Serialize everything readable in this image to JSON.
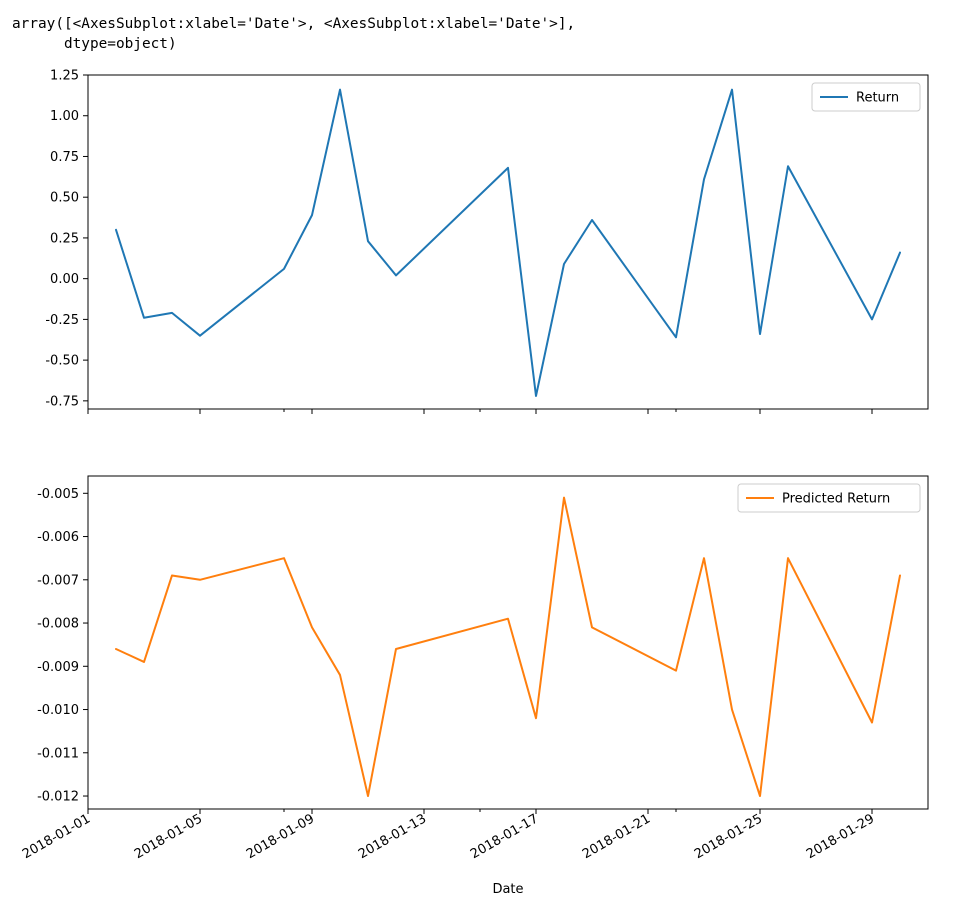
{
  "output_repr": {
    "line1": "array([<AxesSubplot:xlabel='Date'>, <AxesSubplot:xlabel='Date'>],",
    "line2": "      dtype=object)"
  },
  "colors": {
    "return": "#1f77b4",
    "predicted": "#ff7f0e"
  },
  "chart_data": [
    {
      "type": "line",
      "title": "",
      "xlabel": "",
      "ylabel": "",
      "legend": "top-right",
      "series": [
        {
          "name": "Return",
          "x": [
            "2018-01-02",
            "2018-01-03",
            "2018-01-04",
            "2018-01-05",
            "2018-01-08",
            "2018-01-09",
            "2018-01-10",
            "2018-01-11",
            "2018-01-12",
            "2018-01-16",
            "2018-01-17",
            "2018-01-18",
            "2018-01-19",
            "2018-01-22",
            "2018-01-23",
            "2018-01-24",
            "2018-01-25",
            "2018-01-26",
            "2018-01-29",
            "2018-01-30"
          ],
          "values": [
            0.3,
            -0.24,
            -0.21,
            -0.35,
            0.06,
            0.39,
            1.16,
            0.23,
            0.02,
            0.68,
            -0.72,
            0.09,
            0.36,
            -0.36,
            0.61,
            1.16,
            -0.34,
            0.69,
            -0.25,
            0.16
          ]
        }
      ],
      "xlim": [
        "2018-01-01",
        "2018-01-31"
      ],
      "ylim": [
        -0.8,
        1.25
      ],
      "yticks": [
        "1.25",
        "1.00",
        "0.75",
        "0.50",
        "0.25",
        "0.00",
        "-0.25",
        "-0.50",
        "-0.75"
      ],
      "ytick_values": [
        1.25,
        1.0,
        0.75,
        0.5,
        0.25,
        0.0,
        -0.25,
        -0.5,
        -0.75
      ]
    },
    {
      "type": "line",
      "title": "",
      "xlabel": "Date",
      "ylabel": "",
      "legend": "top-right",
      "series": [
        {
          "name": "Predicted Return",
          "x": [
            "2018-01-02",
            "2018-01-03",
            "2018-01-04",
            "2018-01-05",
            "2018-01-08",
            "2018-01-09",
            "2018-01-10",
            "2018-01-11",
            "2018-01-12",
            "2018-01-16",
            "2018-01-17",
            "2018-01-18",
            "2018-01-19",
            "2018-01-22",
            "2018-01-23",
            "2018-01-24",
            "2018-01-25",
            "2018-01-26",
            "2018-01-29",
            "2018-01-30"
          ],
          "values": [
            -0.0086,
            -0.0089,
            -0.0069,
            -0.007,
            -0.0065,
            -0.0081,
            -0.0092,
            -0.012,
            -0.0086,
            -0.0079,
            -0.0102,
            -0.0051,
            -0.0081,
            -0.0091,
            -0.0065,
            -0.01,
            -0.012,
            -0.0065,
            -0.0103,
            -0.0069
          ]
        }
      ],
      "xlim": [
        "2018-01-01",
        "2018-01-31"
      ],
      "ylim": [
        -0.0123,
        -0.0046
      ],
      "yticks": [
        "-0.005",
        "-0.006",
        "-0.007",
        "-0.008",
        "-0.009",
        "-0.010",
        "-0.011",
        "-0.012"
      ],
      "ytick_values": [
        -0.005,
        -0.006,
        -0.007,
        -0.008,
        -0.009,
        -0.01,
        -0.011,
        -0.012
      ],
      "xticks": [
        "2018-01-01",
        "2018-01-05",
        "2018-01-09",
        "2018-01-13",
        "2018-01-17",
        "2018-01-21",
        "2018-01-25",
        "2018-01-29"
      ]
    }
  ]
}
